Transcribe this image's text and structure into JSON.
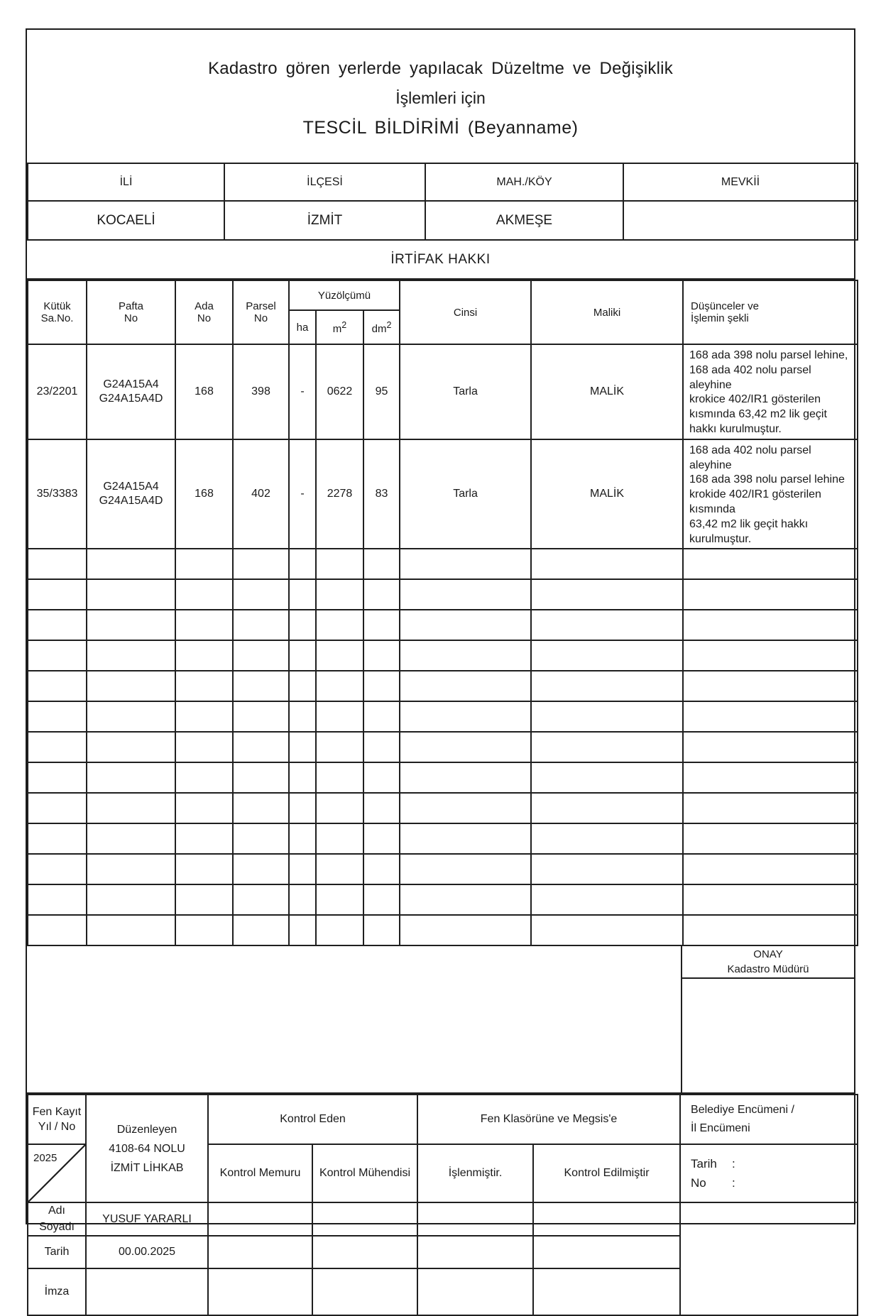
{
  "title": {
    "line1": "Kadastro gören yerlerde yapılacak Düzeltme ve Değişiklik",
    "line2": "İşlemleri için",
    "line3": "TESCİL BİLDİRİMİ (Beyanname)"
  },
  "location": {
    "headers": [
      "İLİ",
      "İLÇESİ",
      "MAH./KÖY",
      "MEVKİİ"
    ],
    "values": [
      "KOCAELİ",
      "İZMİT",
      "AKMEŞE",
      ""
    ]
  },
  "section_title": "İRTİFAK HAKKI",
  "table": {
    "headers": {
      "kutuk1": "Kütük",
      "kutuk2": "Sa.No.",
      "pafta1": "Pafta",
      "pafta2": "No",
      "ada1": "Ada",
      "ada2": "No",
      "parsel1": "Parsel",
      "parsel2": "No",
      "yuzolcumu": "Yüzölçümü",
      "unit_ha": "ha",
      "unit_m": "m",
      "unit_dm": "dm",
      "unit_sup": "2",
      "cinsi": "Cinsi",
      "maliki": "Maliki",
      "dusunceler1": "Düşünceler ve",
      "dusunceler2": "İşlemin şekli"
    },
    "rows": [
      {
        "kutuk": "23/2201",
        "pafta": "G24A15A4\nG24A15A4D",
        "ada": "168",
        "parsel": "398",
        "ha": "-",
        "m2": "0622",
        "dm2": "95",
        "cinsi": "Tarla",
        "maliki": "MALİK",
        "dusunceler": "168 ada 398 nolu parsel lehine,\n168 ada 402 nolu parsel aleyhine\nkrokice 402/IR1 gösterilen\nkısmında 63,42 m2 lik geçit\nhakkı kurulmuştur."
      },
      {
        "kutuk": "35/3383",
        "pafta": "G24A15A4\nG24A15A4D",
        "ada": "168",
        "parsel": "402",
        "ha": "-",
        "m2": "2278",
        "dm2": "83",
        "cinsi": "Tarla",
        "maliki": "MALİK",
        "dusunceler": "168 ada 402 nolu parsel aleyhine\n168 ada 398 nolu parsel lehine\nkrokide 402/IR1 gösterilen  kısmında\n63,42 m2 lik geçit hakkı kurulmuştur."
      }
    ],
    "empty_row_count": 13
  },
  "onay": {
    "line1": "ONAY",
    "line2": "Kadastro Müdürü"
  },
  "bottom": {
    "fen_kayit_label": "Fen Kayıt\nYıl / No",
    "fen_kayit_year": "2025",
    "duzenleyen": "Düzenleyen\n4108-64 NOLU\nİZMİT LİHKAB",
    "kontrol_eden": "Kontrol Eden",
    "kontrol_memuru": "Kontrol Memuru",
    "kontrol_muhendisi": "Kontrol Mühendisi",
    "fen_klasorune": "Fen Klasörüne ve Megsis'e",
    "islenmistir": "İşlenmiştir.",
    "kontrol_edilmistir": "Kontrol Edilmiştir",
    "belediye": "Belediye Encümeni /\nİl Encümeni",
    "tarih_label": "Tarih",
    "no_label": "No",
    "colon": ":",
    "adi_soyadi_label": "Adı\nSoyadı",
    "adi_soyadi_value": "YUSUF YARARLI",
    "tarih_row_label": "Tarih",
    "tarih_row_value": "00.00.2025",
    "imza_label": "İmza"
  }
}
